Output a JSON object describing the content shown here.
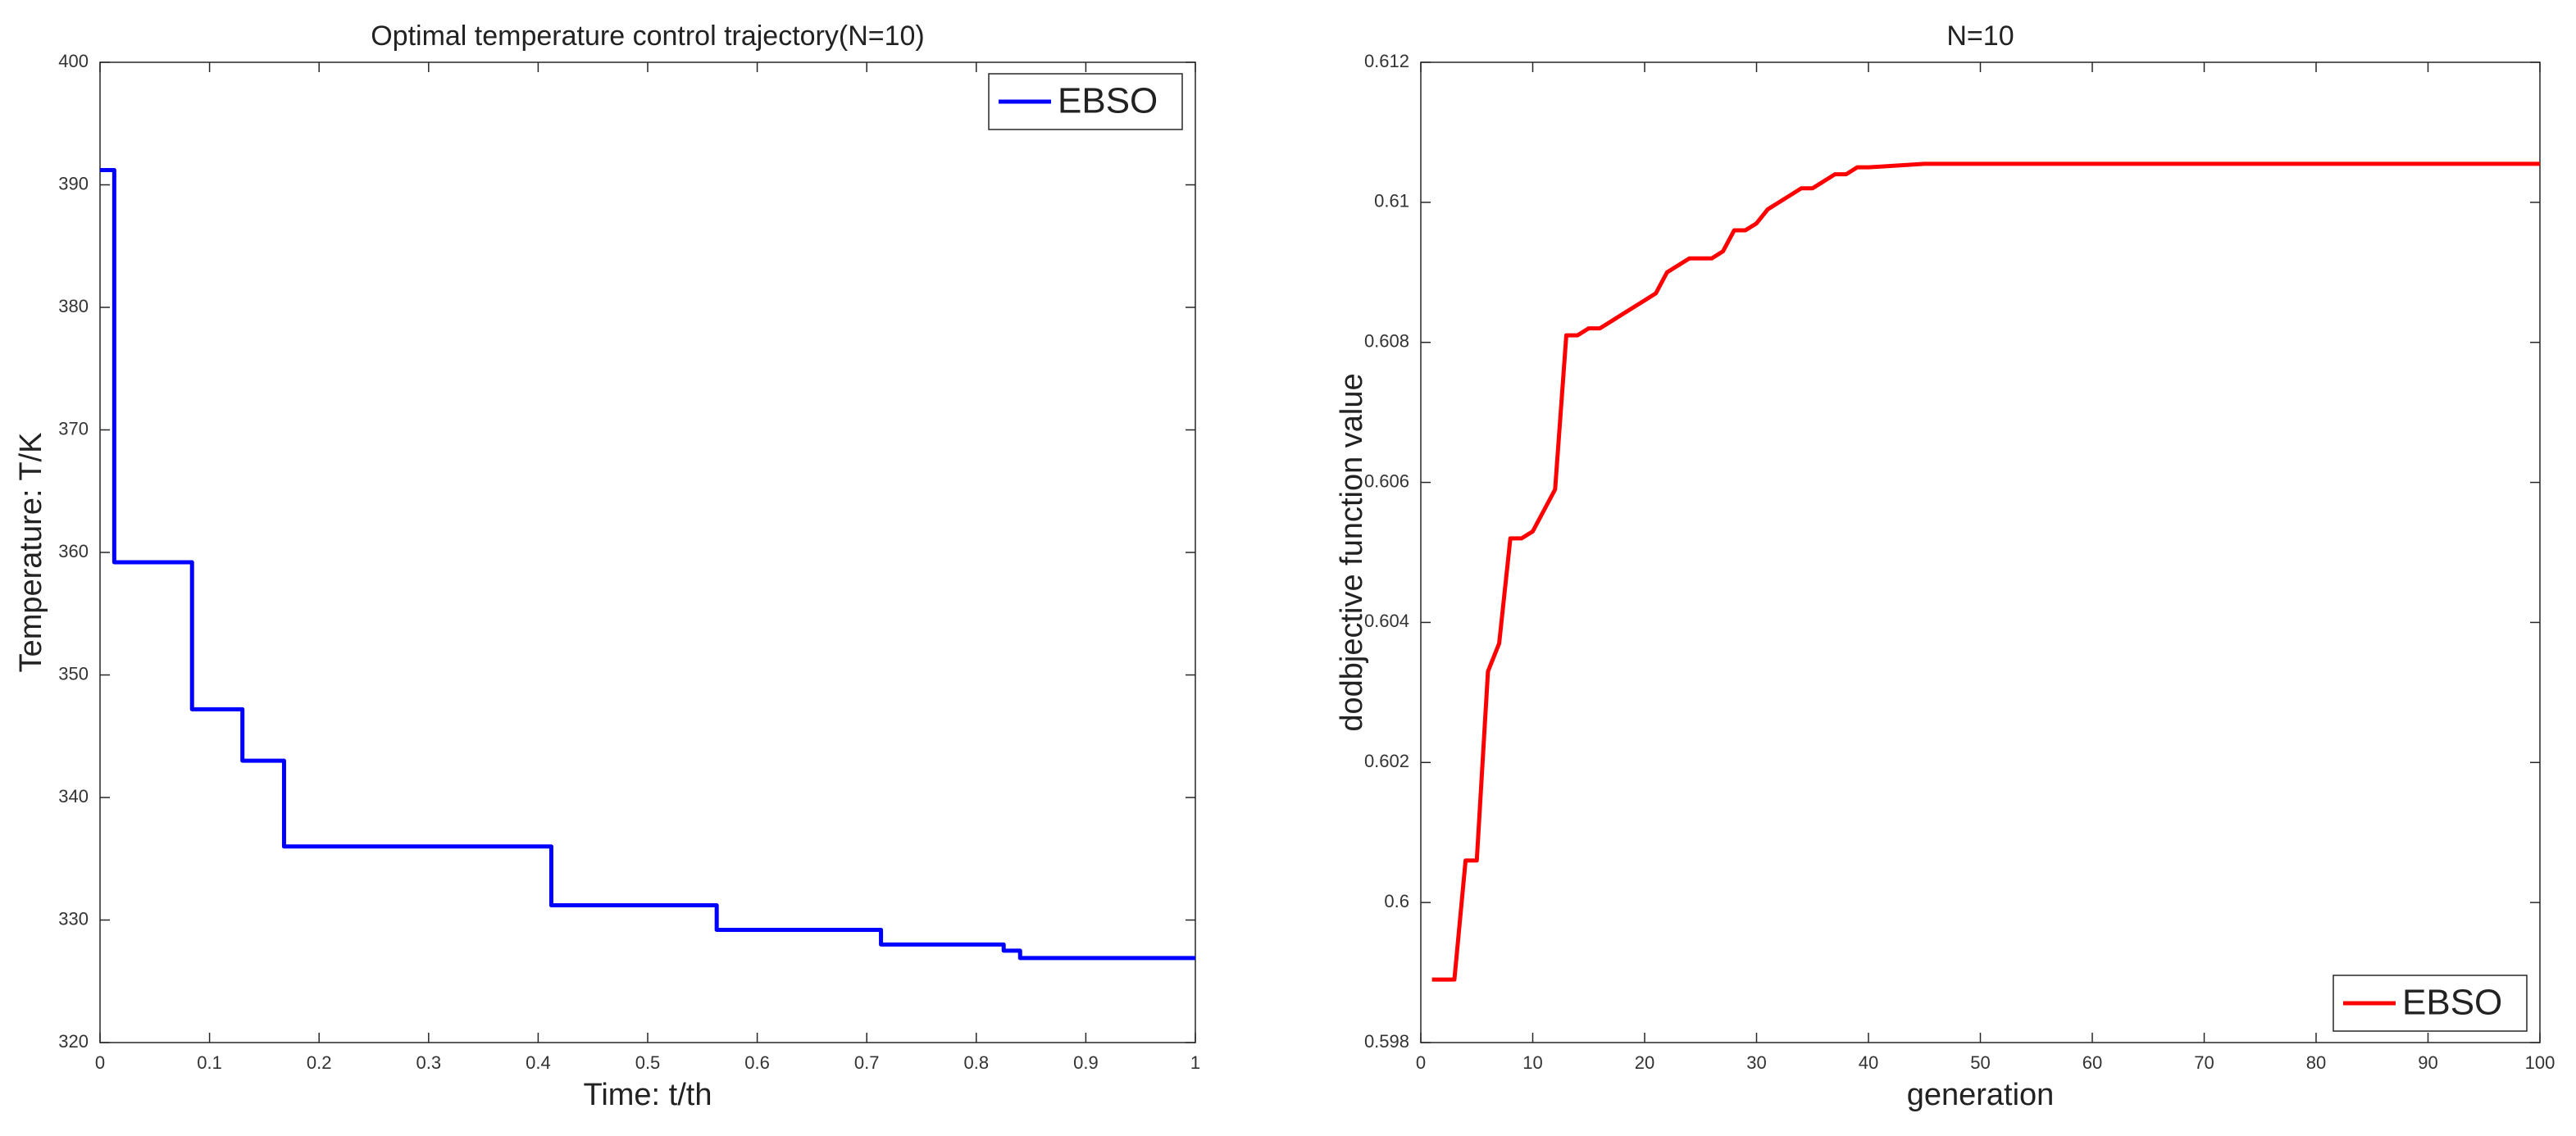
{
  "chart_data": [
    {
      "type": "line",
      "step": "post",
      "title": "Optimal temperature control trajectory(N=10)",
      "x_label": "Time: t/th",
      "y_label": "Temperature: T/K",
      "x": [
        0,
        0.013,
        0.084,
        0.13,
        0.168,
        0.412,
        0.563,
        0.713,
        0.825,
        0.84,
        1
      ],
      "series": [
        {
          "name": "EBSO",
          "color": "#0000ff",
          "values": [
            391.2,
            359.2,
            347.2,
            343,
            336,
            331.2,
            329.2,
            328,
            327.5,
            326.9,
            326.9
          ]
        }
      ],
      "xlim": [
        0,
        1
      ],
      "xticks": [
        0,
        0.1,
        0.2,
        0.3,
        0.4,
        0.5,
        0.6,
        0.7,
        0.8,
        0.9,
        1
      ],
      "ylim": [
        320,
        400
      ],
      "yticks": [
        320,
        330,
        340,
        350,
        360,
        370,
        380,
        390,
        400
      ],
      "legend": "upper-right"
    },
    {
      "type": "line",
      "title": "N=10",
      "x_label": "generation",
      "y_label": "dodbjective function value",
      "x": [
        1,
        2,
        3,
        4,
        5,
        6,
        7,
        8,
        9,
        10,
        11,
        12,
        13,
        14,
        15,
        16,
        17,
        18,
        19,
        20,
        21,
        22,
        23,
        24,
        25,
        26,
        27,
        28,
        29,
        30,
        31,
        32,
        33,
        34,
        35,
        36,
        37,
        38,
        39,
        40,
        45,
        50,
        60,
        70,
        80,
        90,
        100
      ],
      "series": [
        {
          "name": "EBSO",
          "color": "#ff0000",
          "values": [
            0.5989,
            0.5989,
            0.5989,
            0.6006,
            0.6006,
            0.6033,
            0.6037,
            0.6052,
            0.6052,
            0.6053,
            0.6056,
            0.6059,
            0.6081,
            0.6081,
            0.6082,
            0.6082,
            0.6083,
            0.6084,
            0.6085,
            0.6086,
            0.6087,
            0.609,
            0.6091,
            0.6092,
            0.6092,
            0.6092,
            0.6093,
            0.6096,
            0.6096,
            0.6097,
            0.6099,
            0.61,
            0.6101,
            0.6102,
            0.6102,
            0.6103,
            0.6104,
            0.6104,
            0.6105,
            0.6105,
            0.61055,
            0.61055,
            0.61055,
            0.61055,
            0.61055,
            0.61055,
            0.61055
          ]
        }
      ],
      "xlim": [
        0,
        100
      ],
      "xticks": [
        0,
        10,
        20,
        30,
        40,
        50,
        60,
        70,
        80,
        90,
        100
      ],
      "ylim": [
        0.598,
        0.612
      ],
      "yticks": [
        0.598,
        0.6,
        0.602,
        0.604,
        0.606,
        0.608,
        0.61,
        0.612
      ],
      "legend": "lower-right"
    }
  ]
}
